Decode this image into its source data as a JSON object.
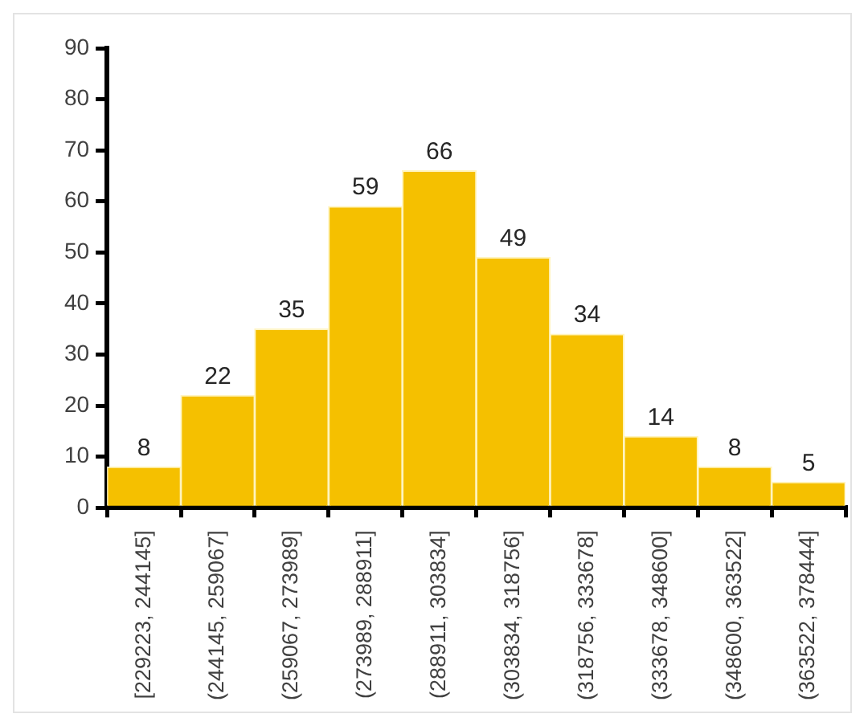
{
  "chart_data": {
    "type": "bar",
    "categories": [
      "[229223, 244145]",
      "(244145, 259067]",
      "(259067, 273989]",
      "(273989, 288911]",
      "(288911, 303834]",
      "(303834, 318756]",
      "(318756, 333678]",
      "(333678, 348600]",
      "(348600, 363522]",
      "(363522, 378444]"
    ],
    "values": [
      8,
      22,
      35,
      59,
      66,
      49,
      34,
      14,
      8,
      5
    ],
    "color": "#f5c000",
    "ylim": [
      0,
      90
    ],
    "yticks": [
      0,
      10,
      20,
      30,
      40,
      50,
      60,
      70,
      80,
      90
    ],
    "grid": false,
    "legend": false,
    "data_labels": true
  }
}
